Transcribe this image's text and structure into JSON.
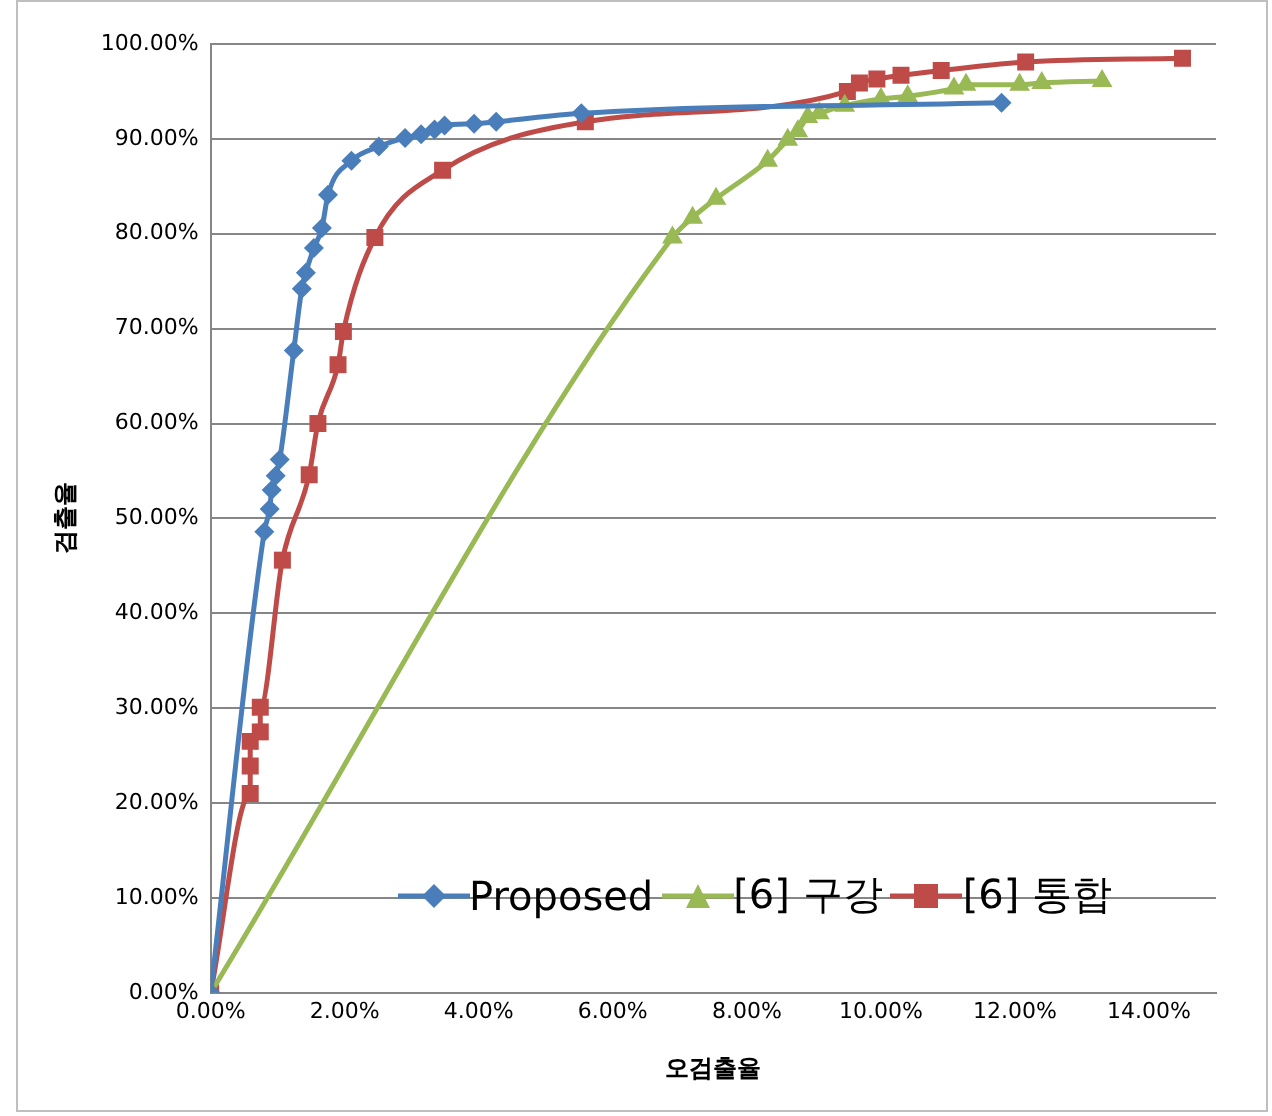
{
  "chart_data": {
    "type": "line",
    "xlabel": "오검출율",
    "ylabel": "검출율",
    "xlim": [
      0,
      15
    ],
    "xticks": [
      {
        "value": 0,
        "label": "0.00%"
      },
      {
        "value": 2,
        "label": "2.00%"
      },
      {
        "value": 4,
        "label": "4.00%"
      },
      {
        "value": 6,
        "label": "6.00%"
      },
      {
        "value": 8,
        "label": "8.00%"
      },
      {
        "value": 10,
        "label": "10.00%"
      },
      {
        "value": 12,
        "label": "12.00%"
      },
      {
        "value": 14,
        "label": "14.00%"
      }
    ],
    "ylim": [
      0,
      100
    ],
    "yticks": [
      {
        "value": 0,
        "label": "0.00%"
      },
      {
        "value": 10,
        "label": "10.00%"
      },
      {
        "value": 20,
        "label": "20.00%"
      },
      {
        "value": 30,
        "label": "30.00%"
      },
      {
        "value": 40,
        "label": "40.00%"
      },
      {
        "value": 50,
        "label": "50.00%"
      },
      {
        "value": 60,
        "label": "60.00%"
      },
      {
        "value": 70,
        "label": "70.00%"
      },
      {
        "value": 80,
        "label": "80.00%"
      },
      {
        "value": 90,
        "label": "90.00%"
      },
      {
        "value": 100,
        "label": "100.00%"
      }
    ],
    "grid": "y",
    "legend": "bottom right",
    "line_style": "solid",
    "series": [
      {
        "name": "Proposed",
        "color": "#4a7ebb",
        "marker": "diamond",
        "x": [
          0,
          0.8,
          0.88,
          0.91,
          0.97,
          1.03,
          1.24,
          1.36,
          1.42,
          1.54,
          1.66,
          1.75,
          2.1,
          2.51,
          2.9,
          3.14,
          3.34,
          3.49,
          3.93,
          4.26,
          5.53,
          11.8
        ],
        "values": [
          0,
          48.6,
          51,
          53,
          54.5,
          56.2,
          67.7,
          74.2,
          75.9,
          78.5,
          80.6,
          84.1,
          87.7,
          89.2,
          90.1,
          90.5,
          91,
          91.4,
          91.6,
          91.8,
          92.7,
          93.8
        ]
      },
      {
        "name": "[6] 구강",
        "color": "#98b954",
        "marker": "triangle",
        "x": [
          0,
          6.89,
          7.19,
          7.54,
          8.31,
          8.61,
          8.76,
          8.91,
          9.08,
          9.46,
          10,
          10.4,
          11.09,
          11.27,
          12.07,
          12.4,
          13.3
        ],
        "values": [
          0,
          79.6,
          81.7,
          83.7,
          87.7,
          89.9,
          90.8,
          92.3,
          92.7,
          93.5,
          94.2,
          94.5,
          95.3,
          95.7,
          95.7,
          95.9,
          96.1
        ]
      },
      {
        "name": "[6] 통합",
        "color": "#be4b48",
        "marker": "square",
        "x": [
          0,
          0.59,
          0.59,
          0.59,
          0.74,
          0.74,
          1.07,
          1.47,
          1.6,
          1.9,
          1.98,
          2.45,
          3.46,
          5.59,
          9.5,
          9.68,
          9.94,
          10.3,
          10.9,
          12.16,
          14.5
        ],
        "values": [
          0,
          21,
          23.9,
          26.5,
          27.5,
          30.1,
          45.6,
          54.6,
          60,
          66.2,
          69.7,
          79.6,
          86.7,
          91.8,
          95,
          95.9,
          96.3,
          96.7,
          97.2,
          98.1,
          98.5
        ]
      }
    ]
  }
}
